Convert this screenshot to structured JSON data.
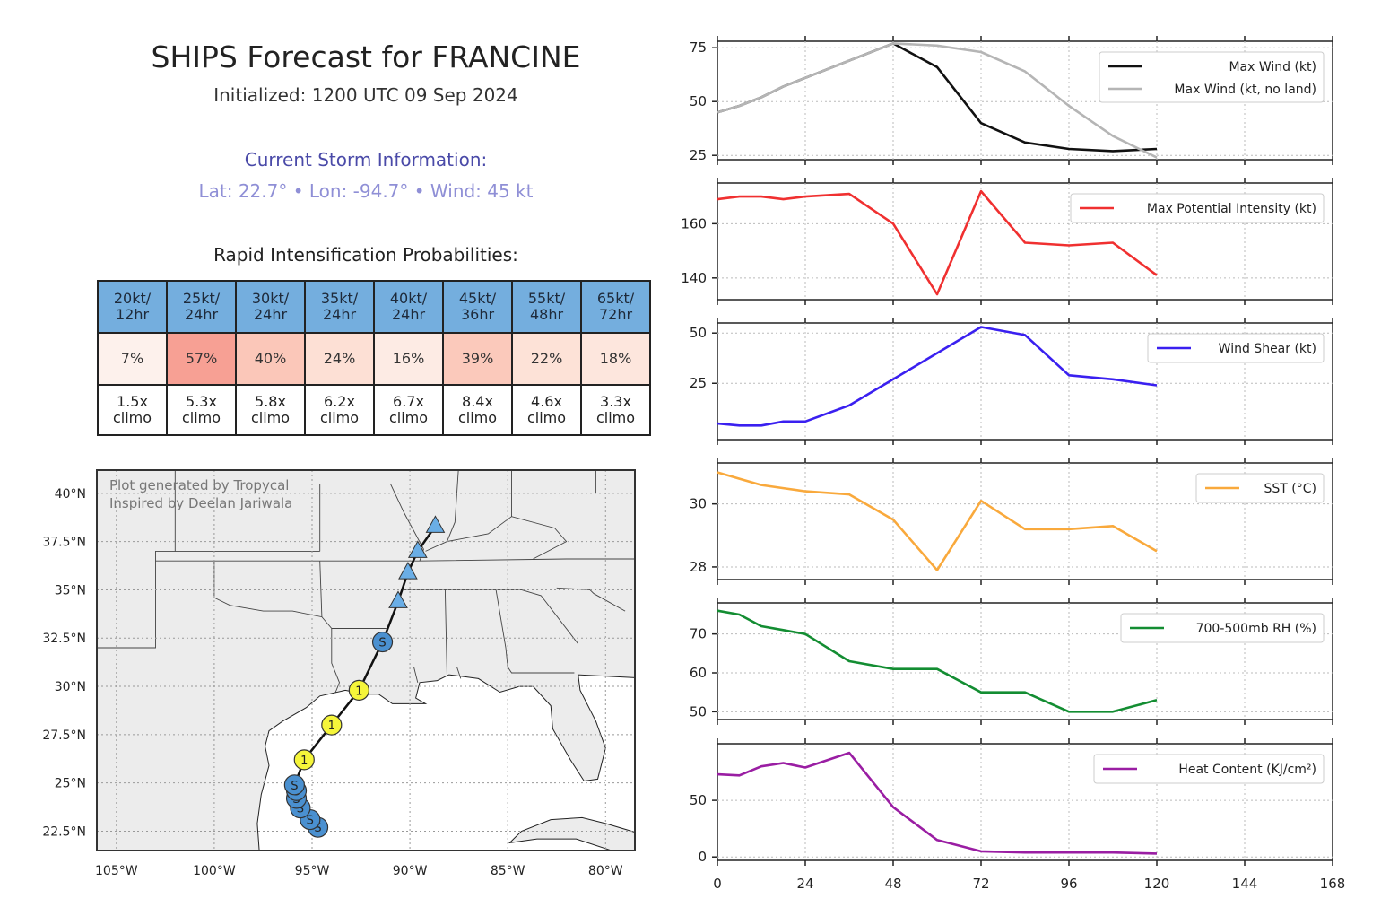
{
  "header": {
    "title": "SHIPS Forecast for FRANCINE",
    "initialized": "Initialized: 1200 UTC 09 Sep 2024",
    "current_heading": "Current Storm Information:",
    "current_line": "Lat: 22.7° • Lon: -94.7° • Wind: 45 kt"
  },
  "ri": {
    "title": "Rapid Intensification Probabilities:",
    "columns": [
      {
        "label": "20kt/\n12hr",
        "prob": "7%",
        "climo": "1.5x\nclimo",
        "color": "#fdf1ec"
      },
      {
        "label": "25kt/\n24hr",
        "prob": "57%",
        "climo": "5.3x\nclimo",
        "color": "#f7a094"
      },
      {
        "label": "30kt/\n24hr",
        "prob": "40%",
        "climo": "5.8x\nclimo",
        "color": "#fbc7b9"
      },
      {
        "label": "35kt/\n24hr",
        "prob": "24%",
        "climo": "6.2x\nclimo",
        "color": "#fde0d5"
      },
      {
        "label": "40kt/\n24hr",
        "prob": "16%",
        "climo": "6.7x\nclimo",
        "color": "#fdebe4"
      },
      {
        "label": "45kt/\n36hr",
        "prob": "39%",
        "climo": "8.4x\nclimo",
        "color": "#fbc9bb"
      },
      {
        "label": "55kt/\n48hr",
        "prob": "22%",
        "climo": "4.6x\nclimo",
        "color": "#fde2d7"
      },
      {
        "label": "65kt/\n72hr",
        "prob": "18%",
        "climo": "3.3x\nclimo",
        "color": "#fde6dd"
      }
    ]
  },
  "map": {
    "credit_line1": "Plot generated by Tropycal",
    "credit_line2": "Inspired by Deelan Jariwala",
    "lat_ticks": [
      "40°N",
      "37.5°N",
      "35°N",
      "32.5°N",
      "30°N",
      "27.5°N",
      "25°N",
      "22.5°N"
    ],
    "lon_ticks": [
      "105°W",
      "100°W",
      "95°W",
      "90°W",
      "85°W",
      "80°W"
    ],
    "track": [
      {
        "lon": -94.7,
        "lat": 22.7,
        "cat": "S"
      },
      {
        "lon": -95.1,
        "lat": 23.1,
        "cat": "S"
      },
      {
        "lon": -95.6,
        "lat": 23.7,
        "cat": "S"
      },
      {
        "lon": -95.8,
        "lat": 24.2,
        "cat": "S"
      },
      {
        "lon": -95.8,
        "lat": 24.6,
        "cat": "S"
      },
      {
        "lon": -95.9,
        "lat": 24.9,
        "cat": "S"
      },
      {
        "lon": -95.4,
        "lat": 26.2,
        "cat": "1"
      },
      {
        "lon": -94.0,
        "lat": 28.0,
        "cat": "1"
      },
      {
        "lon": -92.6,
        "lat": 29.8,
        "cat": "1"
      },
      {
        "lon": -91.4,
        "lat": 32.3,
        "cat": "S"
      },
      {
        "lon": -90.6,
        "lat": 34.4,
        "cat": "D"
      },
      {
        "lon": -90.1,
        "lat": 35.9,
        "cat": "D"
      },
      {
        "lon": -89.6,
        "lat": 37.0,
        "cat": "D"
      },
      {
        "lon": -88.7,
        "lat": 38.3,
        "cat": "D"
      }
    ],
    "colors": {
      "land": "#ececec",
      "ocean": "#ffffff",
      "ts": "#4a90d0",
      "cat1": "#f5f53a",
      "depression": "#6aaee6"
    }
  },
  "chart_data": [
    {
      "type": "line",
      "title": "",
      "xlabel": "",
      "ylabel": "",
      "xlim": [
        0,
        168
      ],
      "ylim": [
        23,
        78
      ],
      "yticks": [
        25,
        50,
        75
      ],
      "series": [
        {
          "name": "Max Wind (kt)",
          "color": "#111111",
          "x": [
            0,
            6,
            12,
            18,
            24,
            36,
            48,
            60,
            72,
            84,
            96,
            108,
            120
          ],
          "values": [
            45,
            48,
            52,
            57,
            61,
            69,
            77,
            66,
            40,
            31,
            28,
            27,
            28
          ]
        },
        {
          "name": "Max Wind (kt, no land)",
          "color": "#b5b5b5",
          "x": [
            0,
            6,
            12,
            18,
            24,
            36,
            48,
            60,
            72,
            84,
            96,
            108,
            120
          ],
          "values": [
            45,
            48,
            52,
            57,
            61,
            69,
            77,
            76,
            73,
            64,
            48,
            34,
            24
          ]
        }
      ]
    },
    {
      "type": "line",
      "xlim": [
        0,
        168
      ],
      "ylim": [
        132,
        175
      ],
      "yticks": [
        140,
        160
      ],
      "series": [
        {
          "name": "Max Potential Intensity (kt)",
          "color": "#f03030",
          "x": [
            0,
            6,
            12,
            18,
            24,
            36,
            48,
            60,
            72,
            84,
            96,
            108,
            120
          ],
          "values": [
            169,
            170,
            170,
            169,
            170,
            171,
            160,
            134,
            172,
            153,
            152,
            153,
            141
          ]
        }
      ]
    },
    {
      "type": "line",
      "xlim": [
        0,
        168
      ],
      "ylim": [
        -3,
        55
      ],
      "yticks": [
        25,
        50
      ],
      "series": [
        {
          "name": "Wind Shear (kt)",
          "color": "#3a20f0",
          "x": [
            0,
            6,
            12,
            18,
            24,
            36,
            48,
            60,
            72,
            84,
            96,
            108,
            120
          ],
          "values": [
            5,
            4,
            4,
            6,
            6,
            14,
            27,
            40,
            53,
            49,
            29,
            27,
            24
          ]
        }
      ]
    },
    {
      "type": "line",
      "xlim": [
        0,
        168
      ],
      "ylim": [
        27.6,
        31.3
      ],
      "yticks": [
        28,
        30
      ],
      "series": [
        {
          "name": "SST (°C)",
          "color": "#f9a93c",
          "x": [
            0,
            6,
            12,
            18,
            24,
            36,
            48,
            60,
            72,
            84,
            96,
            108,
            120
          ],
          "values": [
            31.0,
            30.8,
            30.6,
            30.5,
            30.4,
            30.3,
            29.5,
            27.9,
            30.1,
            29.2,
            29.2,
            29.3,
            28.5
          ]
        }
      ]
    },
    {
      "type": "line",
      "xlim": [
        0,
        168
      ],
      "ylim": [
        48,
        78
      ],
      "yticks": [
        50,
        60,
        70
      ],
      "series": [
        {
          "name": "700-500mb RH (%)",
          "color": "#138d32",
          "x": [
            0,
            6,
            12,
            18,
            24,
            36,
            48,
            60,
            72,
            84,
            96,
            108,
            120
          ],
          "values": [
            76,
            75,
            72,
            71,
            70,
            63,
            61,
            61,
            55,
            55,
            50,
            50,
            53
          ]
        }
      ]
    },
    {
      "type": "line",
      "xlim": [
        0,
        168
      ],
      "ylim": [
        -3,
        100
      ],
      "yticks": [
        0,
        50
      ],
      "xticks": [
        0,
        24,
        48,
        72,
        96,
        120,
        144,
        168
      ],
      "series": [
        {
          "name": "Heat Content (KJ/cm²)",
          "color": "#9a1ea3",
          "x": [
            0,
            6,
            12,
            18,
            24,
            36,
            48,
            60,
            72,
            84,
            96,
            108,
            120
          ],
          "values": [
            73,
            72,
            80,
            83,
            79,
            92,
            44,
            15,
            5,
            4,
            4,
            4,
            3
          ]
        }
      ]
    }
  ]
}
